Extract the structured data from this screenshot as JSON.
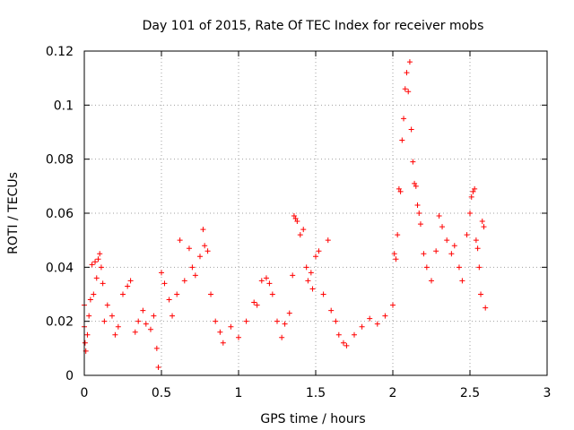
{
  "chart_data": {
    "type": "scatter",
    "title": "Day 101 of 2015, Rate Of TEC Index for receiver mobs",
    "xlabel": "GPS time / hours",
    "ylabel": "ROTI / TECUs",
    "xlim": [
      0,
      3
    ],
    "ylim": [
      0,
      0.12
    ],
    "xticks": [
      0,
      0.5,
      1,
      1.5,
      2,
      2.5,
      3
    ],
    "xtick_labels": [
      "0",
      "0.5",
      "1",
      "1.5",
      "2",
      "2.5",
      "3"
    ],
    "yticks": [
      0,
      0.02,
      0.04,
      0.06,
      0.08,
      0.1,
      0.12
    ],
    "ytick_labels": [
      "0",
      "0.02",
      "0.04",
      "0.06",
      "0.08",
      "0.1",
      "0.12"
    ],
    "grid": true,
    "marker": "+",
    "marker_color": "#ff0000",
    "series": [
      {
        "name": "ROTI",
        "points": [
          [
            0.0,
            0.026
          ],
          [
            0.0,
            0.018
          ],
          [
            0.005,
            0.012
          ],
          [
            0.01,
            0.009
          ],
          [
            0.02,
            0.015
          ],
          [
            0.03,
            0.022
          ],
          [
            0.04,
            0.028
          ],
          [
            0.05,
            0.041
          ],
          [
            0.06,
            0.03
          ],
          [
            0.07,
            0.042
          ],
          [
            0.08,
            0.036
          ],
          [
            0.09,
            0.043
          ],
          [
            0.1,
            0.045
          ],
          [
            0.11,
            0.04
          ],
          [
            0.12,
            0.034
          ],
          [
            0.13,
            0.02
          ],
          [
            0.15,
            0.026
          ],
          [
            0.18,
            0.022
          ],
          [
            0.2,
            0.015
          ],
          [
            0.22,
            0.018
          ],
          [
            0.25,
            0.03
          ],
          [
            0.28,
            0.033
          ],
          [
            0.3,
            0.035
          ],
          [
            0.33,
            0.016
          ],
          [
            0.35,
            0.02
          ],
          [
            0.38,
            0.024
          ],
          [
            0.4,
            0.019
          ],
          [
            0.43,
            0.017
          ],
          [
            0.45,
            0.022
          ],
          [
            0.47,
            0.01
          ],
          [
            0.48,
            0.003
          ],
          [
            0.5,
            0.038
          ],
          [
            0.52,
            0.034
          ],
          [
            0.55,
            0.028
          ],
          [
            0.57,
            0.022
          ],
          [
            0.6,
            0.03
          ],
          [
            0.62,
            0.05
          ],
          [
            0.65,
            0.035
          ],
          [
            0.68,
            0.047
          ],
          [
            0.7,
            0.04
          ],
          [
            0.72,
            0.037
          ],
          [
            0.75,
            0.044
          ],
          [
            0.77,
            0.054
          ],
          [
            0.78,
            0.048
          ],
          [
            0.8,
            0.046
          ],
          [
            0.82,
            0.03
          ],
          [
            0.85,
            0.02
          ],
          [
            0.88,
            0.016
          ],
          [
            0.9,
            0.012
          ],
          [
            0.95,
            0.018
          ],
          [
            1.0,
            0.014
          ],
          [
            1.05,
            0.02
          ],
          [
            1.1,
            0.027
          ],
          [
            1.12,
            0.026
          ],
          [
            1.15,
            0.035
          ],
          [
            1.18,
            0.036
          ],
          [
            1.2,
            0.034
          ],
          [
            1.22,
            0.03
          ],
          [
            1.25,
            0.02
          ],
          [
            1.28,
            0.014
          ],
          [
            1.3,
            0.019
          ],
          [
            1.33,
            0.023
          ],
          [
            1.35,
            0.037
          ],
          [
            1.36,
            0.059
          ],
          [
            1.37,
            0.058
          ],
          [
            1.38,
            0.057
          ],
          [
            1.4,
            0.052
          ],
          [
            1.42,
            0.054
          ],
          [
            1.44,
            0.04
          ],
          [
            1.45,
            0.035
          ],
          [
            1.47,
            0.038
          ],
          [
            1.48,
            0.032
          ],
          [
            1.5,
            0.044
          ],
          [
            1.52,
            0.046
          ],
          [
            1.55,
            0.03
          ],
          [
            1.58,
            0.05
          ],
          [
            1.6,
            0.024
          ],
          [
            1.63,
            0.02
          ],
          [
            1.65,
            0.015
          ],
          [
            1.68,
            0.012
          ],
          [
            1.7,
            0.011
          ],
          [
            1.75,
            0.015
          ],
          [
            1.8,
            0.018
          ],
          [
            1.85,
            0.021
          ],
          [
            1.9,
            0.019
          ],
          [
            1.95,
            0.022
          ],
          [
            2.0,
            0.026
          ],
          [
            2.01,
            0.045
          ],
          [
            2.02,
            0.043
          ],
          [
            2.03,
            0.052
          ],
          [
            2.04,
            0.069
          ],
          [
            2.05,
            0.068
          ],
          [
            2.06,
            0.087
          ],
          [
            2.07,
            0.095
          ],
          [
            2.08,
            0.106
          ],
          [
            2.09,
            0.112
          ],
          [
            2.1,
            0.105
          ],
          [
            2.11,
            0.116
          ],
          [
            2.12,
            0.091
          ],
          [
            2.13,
            0.079
          ],
          [
            2.14,
            0.071
          ],
          [
            2.15,
            0.07
          ],
          [
            2.16,
            0.063
          ],
          [
            2.17,
            0.06
          ],
          [
            2.18,
            0.056
          ],
          [
            2.2,
            0.045
          ],
          [
            2.22,
            0.04
          ],
          [
            2.25,
            0.035
          ],
          [
            2.28,
            0.046
          ],
          [
            2.3,
            0.059
          ],
          [
            2.32,
            0.055
          ],
          [
            2.35,
            0.05
          ],
          [
            2.38,
            0.045
          ],
          [
            2.4,
            0.048
          ],
          [
            2.43,
            0.04
          ],
          [
            2.45,
            0.035
          ],
          [
            2.48,
            0.052
          ],
          [
            2.5,
            0.06
          ],
          [
            2.51,
            0.066
          ],
          [
            2.52,
            0.068
          ],
          [
            2.53,
            0.069
          ],
          [
            2.54,
            0.05
          ],
          [
            2.55,
            0.047
          ],
          [
            2.56,
            0.04
          ],
          [
            2.57,
            0.03
          ],
          [
            2.58,
            0.057
          ],
          [
            2.59,
            0.055
          ],
          [
            2.6,
            0.025
          ]
        ]
      }
    ]
  }
}
